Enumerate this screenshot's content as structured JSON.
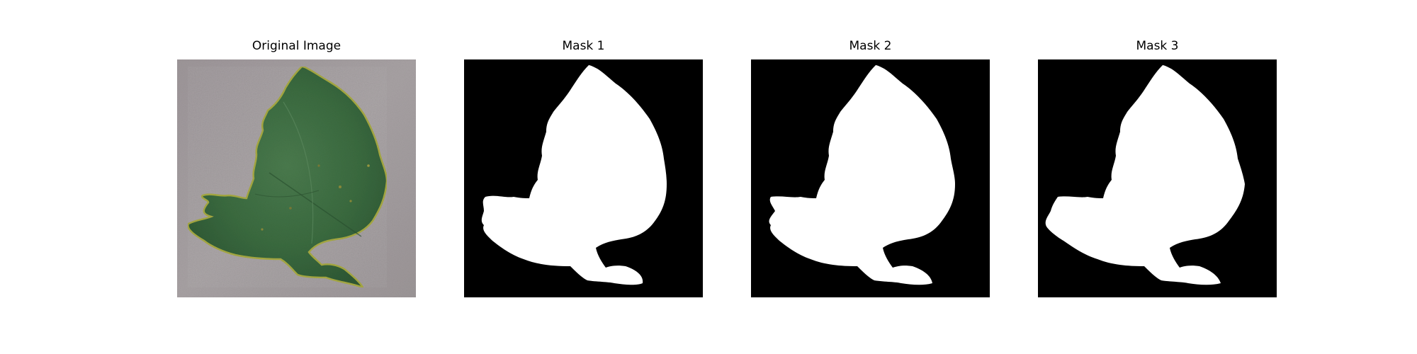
{
  "panels": [
    {
      "title": "Original Image",
      "kind": "photo"
    },
    {
      "title": "Mask 1",
      "kind": "mask"
    },
    {
      "title": "Mask 2",
      "kind": "mask"
    },
    {
      "title": "Mask 3",
      "kind": "mask"
    }
  ],
  "colors": {
    "figure_background": "#ffffff",
    "photo_background": "#a09a9c",
    "leaf": "#3c6b3f",
    "leaf_dark": "#2f5a35",
    "leaf_edge_yellow": "#a5a842",
    "mask_background": "#000000",
    "mask_foreground": "#ffffff"
  },
  "icons": {
    "leaf_photo": "tomato-leaf-photo",
    "mask": "binary-leaf-mask"
  }
}
